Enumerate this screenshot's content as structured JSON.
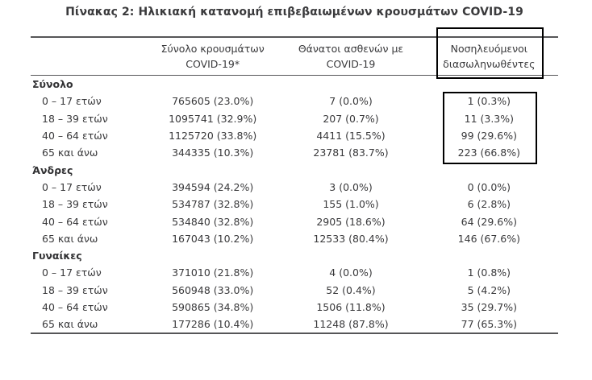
{
  "page": {
    "title": "Πίνακας 2: Ηλικιακή κατανομή επιβεβαιωμένων κρουσμάτων COVID-19"
  },
  "colors": {
    "text": "#39393b",
    "rule": "#565658",
    "highlight_box": "#000000",
    "background": "#ffffff"
  },
  "annotations": {
    "highlighted_column": "Νοσηλευόμενοι διασωληνωθέντες",
    "highlighted_section": "Σύνολο"
  },
  "table": {
    "columns": [
      {
        "line1": "Σύνολο κρουσμάτων",
        "line2": "COVID-19*"
      },
      {
        "line1": "Θάνατοι ασθενών με",
        "line2": "COVID-19"
      },
      {
        "line1": "Νοσηλευόμενοι",
        "line2": "διασωληνωθέντες"
      }
    ],
    "sections": [
      {
        "label": "Σύνολο",
        "rows": [
          {
            "age": "0 – 17 ετών",
            "cases": "765605 (23.0%)",
            "deaths": "7 (0.0%)",
            "intubated": "1 (0.3%)"
          },
          {
            "age": "18 – 39 ετών",
            "cases": "1095741 (32.9%)",
            "deaths": "207 (0.7%)",
            "intubated": "11 (3.3%)"
          },
          {
            "age": "40 – 64 ετών",
            "cases": "1125720 (33.8%)",
            "deaths": "4411 (15.5%)",
            "intubated": "99 (29.6%)"
          },
          {
            "age": "65 και άνω",
            "cases": "344335 (10.3%)",
            "deaths": "23781 (83.7%)",
            "intubated": "223 (66.8%)"
          }
        ]
      },
      {
        "label": "Άνδρες",
        "rows": [
          {
            "age": "0 – 17 ετών",
            "cases": "394594 (24.2%)",
            "deaths": "3 (0.0%)",
            "intubated": "0 (0.0%)"
          },
          {
            "age": "18 – 39 ετών",
            "cases": "534787 (32.8%)",
            "deaths": "155 (1.0%)",
            "intubated": "6 (2.8%)"
          },
          {
            "age": "40 – 64 ετών",
            "cases": "534840 (32.8%)",
            "deaths": "2905 (18.6%)",
            "intubated": "64 (29.6%)"
          },
          {
            "age": "65 και άνω",
            "cases": "167043 (10.2%)",
            "deaths": "12533 (80.4%)",
            "intubated": "146 (67.6%)"
          }
        ]
      },
      {
        "label": "Γυναίκες",
        "rows": [
          {
            "age": "0 – 17 ετών",
            "cases": "371010 (21.8%)",
            "deaths": "4 (0.0%)",
            "intubated": "1 (0.8%)"
          },
          {
            "age": "18 – 39 ετών",
            "cases": "560948 (33.0%)",
            "deaths": "52 (0.4%)",
            "intubated": "5 (4.2%)"
          },
          {
            "age": "40 – 64 ετών",
            "cases": "590865 (34.8%)",
            "deaths": "1506 (11.8%)",
            "intubated": "35 (29.7%)"
          },
          {
            "age": "65 και άνω",
            "cases": "177286 (10.4%)",
            "deaths": "11248 (87.8%)",
            "intubated": "77 (65.3%)"
          }
        ]
      }
    ]
  }
}
